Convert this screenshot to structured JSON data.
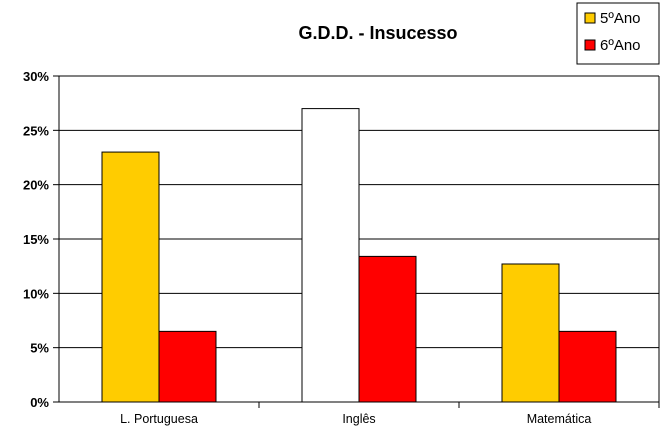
{
  "chart_data": {
    "type": "bar",
    "title": "G.D.D. - Insucesso",
    "xlabel": "",
    "ylabel": "",
    "categories": [
      "L. Portuguesa",
      "Inglês",
      "Matemática"
    ],
    "series": [
      {
        "name": "5ºAno",
        "values": [
          0.23,
          0.27,
          0.127
        ],
        "color": "#FFCC00",
        "point_colors": [
          "#FFCC00",
          "#FFFFFF",
          "#FFCC00"
        ]
      },
      {
        "name": "6ºAno",
        "values": [
          0.065,
          0.134,
          0.065
        ],
        "color": "#FF0000"
      }
    ],
    "ylim": [
      0,
      0.3
    ],
    "yticks": [
      0,
      0.05,
      0.1,
      0.15,
      0.2,
      0.25,
      0.3
    ],
    "ytick_labels": [
      "0%",
      "5%",
      "10%",
      "15%",
      "20%",
      "25%",
      "30%"
    ],
    "grid": true,
    "legend_position": "top-right"
  }
}
